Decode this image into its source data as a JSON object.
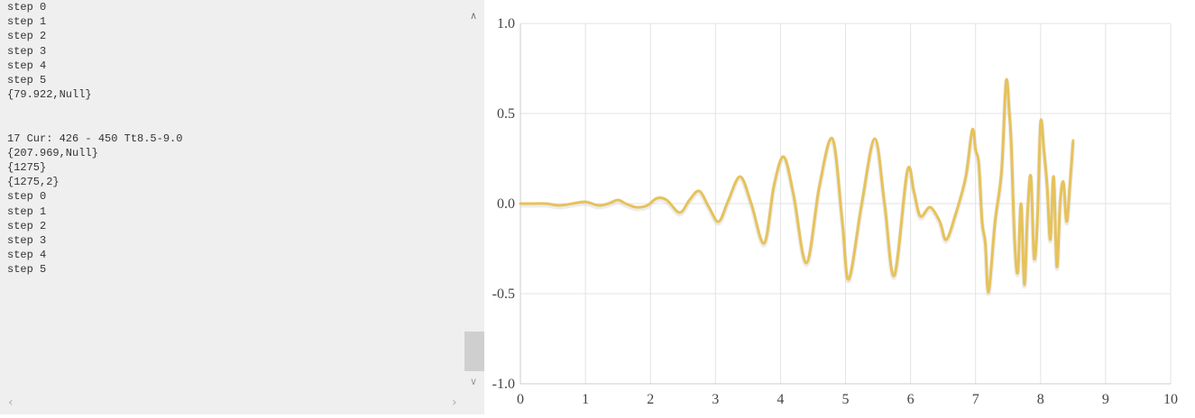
{
  "console": {
    "lines": [
      "step 0",
      "step 1",
      "step 2",
      "step 3",
      "step 4",
      "step 5",
      "{79.922,Null}",
      "",
      "",
      "17 Cur: 426 - 450 Tt8.5-9.0",
      "{207.969,Null}",
      "{1275}",
      "{1275,2}",
      "step 0",
      "step 1",
      "step 2",
      "step 3",
      "step 4",
      "step 5"
    ],
    "scroll_up_icon": "chevron-up-icon",
    "scroll_down_icon": "chevron-down-icon",
    "scroll_left_icon": "chevron-left-icon",
    "scroll_right_icon": "chevron-right-icon"
  },
  "chart_data": {
    "type": "line",
    "title": "",
    "xlabel": "",
    "ylabel": "",
    "xlim": [
      0,
      10
    ],
    "ylim": [
      -1.0,
      1.0
    ],
    "x_ticks": [
      "0",
      "1",
      "2",
      "3",
      "4",
      "5",
      "6",
      "7",
      "8",
      "9",
      "10"
    ],
    "y_ticks": [
      "1.0",
      "0.5",
      "0.0",
      "-0.5",
      "-1.0"
    ],
    "grid": true,
    "line_color": "#e6c25a",
    "series": [
      {
        "x": [
          0,
          0.2,
          0.4,
          0.6,
          0.8,
          1.0,
          1.2,
          1.35,
          1.5,
          1.62,
          1.78,
          1.95,
          2.1,
          2.25,
          2.45,
          2.6,
          2.75,
          2.9,
          3.05,
          3.2,
          3.38,
          3.55,
          3.75,
          3.9,
          4.05,
          4.2,
          4.4,
          4.6,
          4.8,
          4.95,
          5.05,
          5.25,
          5.45,
          5.6,
          5.75,
          5.95,
          6.05,
          6.15,
          6.3,
          6.45,
          6.55,
          6.7,
          6.85,
          6.95,
          7.0,
          7.05,
          7.1,
          7.15,
          7.2,
          7.3,
          7.4,
          7.47,
          7.52,
          7.55,
          7.6,
          7.65,
          7.7,
          7.75,
          7.8,
          7.85,
          7.9,
          7.95,
          8.0,
          8.05,
          8.1,
          8.15,
          8.2,
          8.25,
          8.3,
          8.35,
          8.4,
          8.45,
          8.5
        ],
        "y": [
          0.0,
          0.0,
          0.0,
          -0.01,
          0.0,
          0.01,
          -0.01,
          0.0,
          0.02,
          0.0,
          -0.02,
          -0.01,
          0.03,
          0.02,
          -0.05,
          0.02,
          0.07,
          -0.02,
          -0.1,
          0.02,
          0.15,
          0.0,
          -0.22,
          0.1,
          0.26,
          0.05,
          -0.33,
          0.1,
          0.36,
          -0.1,
          -0.42,
          0.0,
          0.36,
          0.0,
          -0.4,
          0.18,
          0.07,
          -0.07,
          -0.02,
          -0.1,
          -0.2,
          -0.05,
          0.15,
          0.41,
          0.3,
          0.22,
          -0.1,
          -0.22,
          -0.49,
          -0.1,
          0.18,
          0.68,
          0.5,
          0.32,
          -0.2,
          -0.38,
          0.0,
          -0.45,
          -0.05,
          0.15,
          -0.3,
          -0.1,
          0.45,
          0.3,
          0.1,
          -0.2,
          0.15,
          -0.35,
          0.0,
          0.12,
          -0.1,
          0.1,
          0.35
        ]
      }
    ]
  }
}
